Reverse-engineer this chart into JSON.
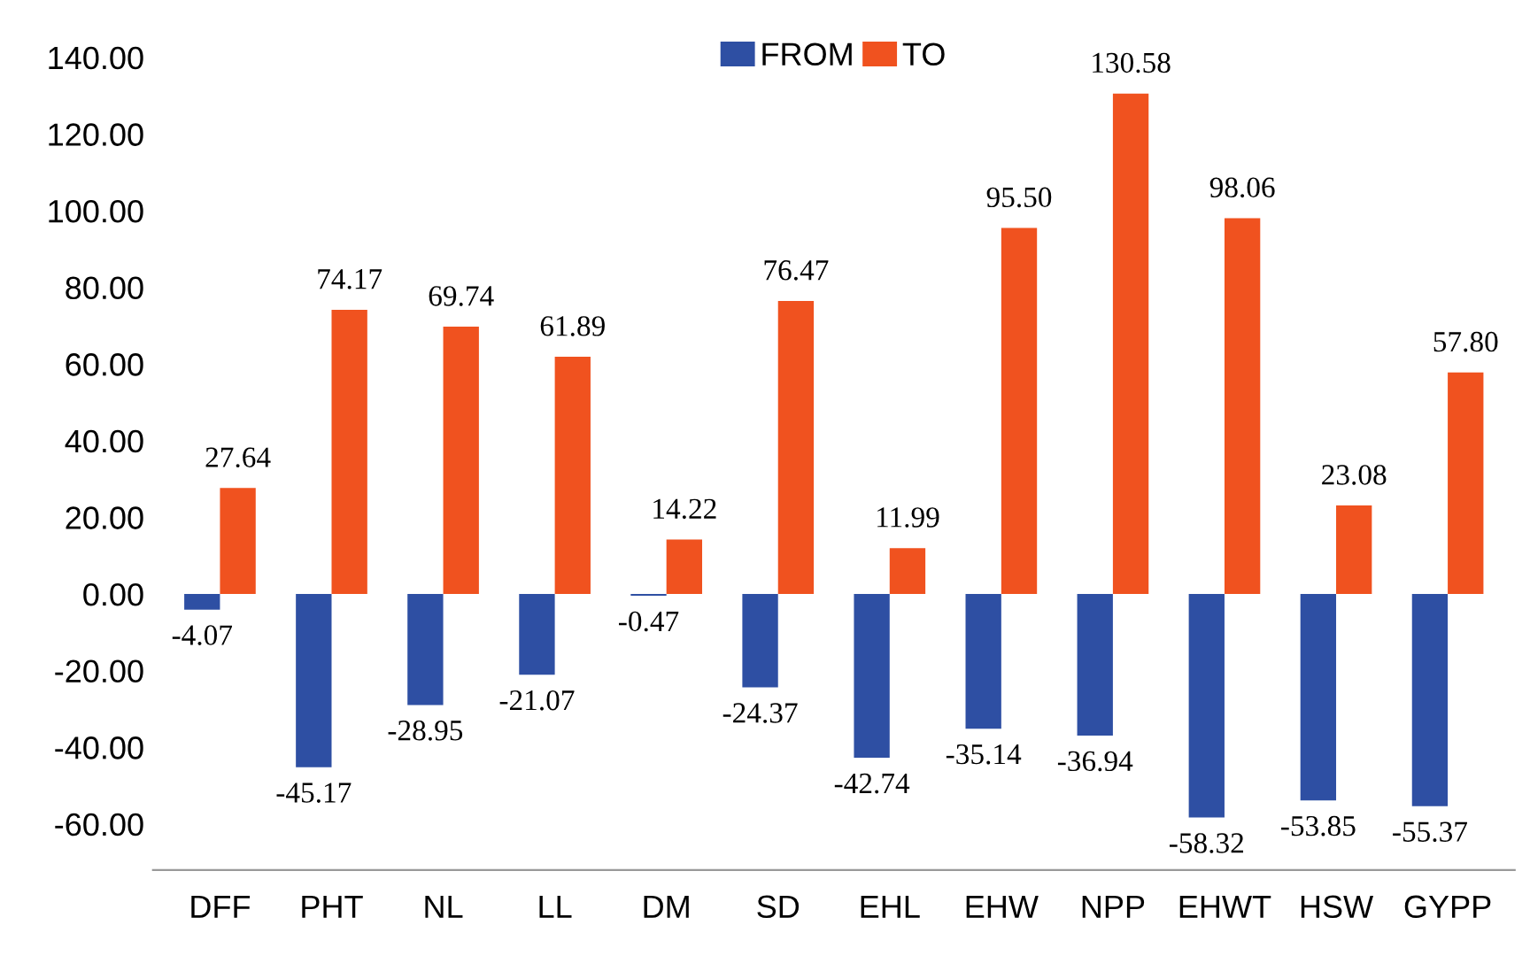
{
  "chart_data": {
    "type": "bar",
    "categories": [
      "DFF",
      "PHT",
      "NL",
      "LL",
      "DM",
      "SD",
      "EHL",
      "EHW",
      "NPP",
      "EHWT",
      "HSW",
      "GYPP"
    ],
    "series": [
      {
        "name": "FROM",
        "color": "#2e4fa3",
        "values": [
          -4.07,
          -45.17,
          -28.95,
          -21.07,
          -0.47,
          -24.37,
          -42.74,
          -35.14,
          -36.94,
          -58.32,
          -53.85,
          -55.37
        ],
        "value_labels": [
          "-4.07",
          "-45.17",
          "-28.95",
          "-21.07",
          "-0.47",
          "-24.37",
          "-42.74",
          "-35.14",
          "-36.94",
          "-58.32",
          "-53.85",
          "-55.37"
        ]
      },
      {
        "name": "TO",
        "color": "#f0521f",
        "values": [
          27.64,
          74.17,
          69.74,
          61.89,
          14.22,
          76.47,
          11.99,
          95.5,
          130.58,
          98.06,
          23.08,
          57.8
        ],
        "value_labels": [
          "27.64",
          "74.17",
          "69.74",
          "61.89",
          "14.22",
          "76.47",
          "11.99",
          "95.50",
          "130.58",
          "98.06",
          "23.08",
          "57.80"
        ]
      }
    ],
    "ylim": [
      -72,
      145
    ],
    "yticks": [
      {
        "value": -60,
        "label": "-60.00"
      },
      {
        "value": -40,
        "label": "-40.00"
      },
      {
        "value": -20,
        "label": "-20.00"
      },
      {
        "value": 0,
        "label": "0.00"
      },
      {
        "value": 20,
        "label": "20.00"
      },
      {
        "value": 40,
        "label": "40.00"
      },
      {
        "value": 60,
        "label": "60.00"
      },
      {
        "value": 80,
        "label": "80.00"
      },
      {
        "value": 100,
        "label": "100.00"
      },
      {
        "value": 120,
        "label": "120.00"
      },
      {
        "value": 140,
        "label": "140.00"
      }
    ],
    "grid": false,
    "legend": "top"
  }
}
